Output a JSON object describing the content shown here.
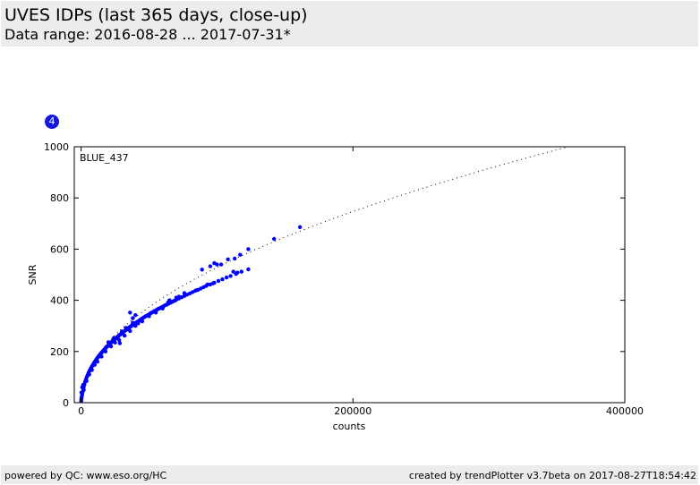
{
  "header": {
    "title": "UVES IDPs (last 365 days, close-up)",
    "subtitle": "Data range: 2016-08-28 ... 2017-07-31*"
  },
  "plot_number": "4",
  "footer": {
    "left": "powered by QC: www.eso.org/HC",
    "right": "created by trendPlotter v3.7beta on 2017-08-27T18:54:42"
  },
  "colors": {
    "points": "#0000ff",
    "fit": "#000000",
    "header_bg": "#ececec"
  },
  "chart_data": {
    "type": "scatter",
    "title": "",
    "panel_label": "BLUE_437",
    "xlabel": "counts",
    "ylabel": "SNR",
    "xlim": [
      -5000,
      400000
    ],
    "ylim": [
      0,
      1000
    ],
    "xticks": [
      0,
      200000,
      400000
    ],
    "xtick_labels": [
      "0",
      "200000",
      "400000"
    ],
    "yticks": [
      0,
      200,
      400,
      600,
      800,
      1000
    ],
    "ytick_labels": [
      "0",
      "200",
      "400",
      "600",
      "800",
      "1000"
    ],
    "grid": false,
    "fit_curve": {
      "style": "dotted",
      "form": "sqrt",
      "k": 1.67
    },
    "series": [
      {
        "points": [
          [
            50,
            5
          ],
          [
            150,
            12
          ],
          [
            300,
            18
          ],
          [
            500,
            25
          ],
          [
            800,
            32
          ],
          [
            1200,
            42
          ],
          [
            1600,
            52
          ],
          [
            2000,
            62
          ],
          [
            2500,
            72
          ],
          [
            3000,
            82
          ],
          [
            3500,
            90
          ],
          [
            4000,
            98
          ],
          [
            4500,
            104
          ],
          [
            5000,
            110
          ],
          [
            5500,
            116
          ],
          [
            6000,
            122
          ],
          [
            6500,
            127
          ],
          [
            7000,
            132
          ],
          [
            7500,
            137
          ],
          [
            8000,
            142
          ],
          [
            8500,
            146
          ],
          [
            9000,
            150
          ],
          [
            9500,
            155
          ],
          [
            10000,
            159
          ],
          [
            10500,
            163
          ],
          [
            11000,
            167
          ],
          [
            11500,
            171
          ],
          [
            12000,
            175
          ],
          [
            12500,
            178
          ],
          [
            13000,
            182
          ],
          [
            13500,
            185
          ],
          [
            14000,
            188
          ],
          [
            14500,
            192
          ],
          [
            15000,
            195
          ],
          [
            15500,
            198
          ],
          [
            16000,
            201
          ],
          [
            16500,
            204
          ],
          [
            17000,
            207
          ],
          [
            17500,
            210
          ],
          [
            18000,
            213
          ],
          [
            18500,
            216
          ],
          [
            19000,
            219
          ],
          [
            19500,
            221
          ],
          [
            20000,
            224
          ],
          [
            20500,
            227
          ],
          [
            21000,
            229
          ],
          [
            21500,
            232
          ],
          [
            22000,
            234
          ],
          [
            22500,
            237
          ],
          [
            23000,
            239
          ],
          [
            23500,
            242
          ],
          [
            24000,
            244
          ],
          [
            24500,
            247
          ],
          [
            25000,
            249
          ],
          [
            25500,
            251
          ],
          [
            26000,
            254
          ],
          [
            26500,
            256
          ],
          [
            27000,
            258
          ],
          [
            27500,
            261
          ],
          [
            28000,
            263
          ],
          [
            28500,
            265
          ],
          [
            29000,
            267
          ],
          [
            29500,
            269
          ],
          [
            30000,
            271
          ],
          [
            30500,
            273
          ],
          [
            31000,
            276
          ],
          [
            31500,
            278
          ],
          [
            32000,
            280
          ],
          [
            32500,
            282
          ],
          [
            33000,
            284
          ],
          [
            33500,
            286
          ],
          [
            34000,
            288
          ],
          [
            34500,
            290
          ],
          [
            35000,
            292
          ],
          [
            35500,
            294
          ],
          [
            36000,
            296
          ],
          [
            36500,
            298
          ],
          [
            37000,
            300
          ],
          [
            37500,
            302
          ],
          [
            38000,
            304
          ],
          [
            39000,
            308
          ],
          [
            40000,
            311
          ],
          [
            41000,
            315
          ],
          [
            42000,
            318
          ],
          [
            43000,
            322
          ],
          [
            44000,
            326
          ],
          [
            45000,
            329
          ],
          [
            46000,
            333
          ],
          [
            47000,
            336
          ],
          [
            48000,
            339
          ],
          [
            49000,
            342
          ],
          [
            50000,
            345
          ],
          [
            51000,
            349
          ],
          [
            52000,
            352
          ],
          [
            53000,
            355
          ],
          [
            54000,
            358
          ],
          [
            55000,
            361
          ],
          [
            56000,
            364
          ],
          [
            57000,
            367
          ],
          [
            58000,
            369
          ],
          [
            59000,
            372
          ],
          [
            60000,
            375
          ],
          [
            61000,
            378
          ],
          [
            62000,
            381
          ],
          [
            63000,
            383
          ],
          [
            64000,
            386
          ],
          [
            65000,
            389
          ],
          [
            66000,
            391
          ],
          [
            67000,
            394
          ],
          [
            68000,
            397
          ],
          [
            69000,
            399
          ],
          [
            70000,
            402
          ],
          [
            72000,
            407
          ],
          [
            74000,
            412
          ],
          [
            76000,
            417
          ],
          [
            78000,
            422
          ],
          [
            80000,
            427
          ],
          [
            82000,
            432
          ],
          [
            84000,
            437
          ],
          [
            86000,
            441
          ],
          [
            88000,
            446
          ],
          [
            90000,
            451
          ],
          [
            92000,
            456
          ],
          [
            95000,
            462
          ],
          [
            98000,
            469
          ],
          [
            101000,
            476
          ],
          [
            104000,
            482
          ],
          [
            107000,
            489
          ],
          [
            110000,
            495
          ],
          [
            114000,
            503
          ],
          [
            118000,
            512
          ],
          [
            123000,
            521
          ],
          [
            2000,
            50
          ],
          [
            4000,
            85
          ],
          [
            6000,
            110
          ],
          [
            8000,
            128
          ],
          [
            10000,
            148
          ],
          [
            12000,
            160
          ],
          [
            15000,
            180
          ],
          [
            18000,
            200
          ],
          [
            22000,
            220
          ],
          [
            25000,
            235
          ],
          [
            28000,
            245
          ],
          [
            28500,
            232
          ],
          [
            32000,
            262
          ],
          [
            36000,
            280
          ],
          [
            40000,
            300
          ],
          [
            45000,
            318
          ],
          [
            50000,
            338
          ],
          [
            55000,
            352
          ],
          [
            60000,
            368
          ],
          [
            42000,
            310
          ],
          [
            300,
            40
          ],
          [
            800,
            60
          ],
          [
            1500,
            70
          ],
          [
            20000,
            236
          ],
          [
            24000,
            252
          ],
          [
            30000,
            278
          ],
          [
            33000,
            292
          ],
          [
            38000,
            312
          ],
          [
            64000,
            392
          ],
          [
            70000,
            410
          ],
          [
            76000,
            428
          ],
          [
            85000,
            440
          ],
          [
            93000,
            462
          ],
          [
            97000,
            466
          ],
          [
            112000,
            512
          ],
          [
            115000,
            508
          ],
          [
            142000,
            640
          ],
          [
            161000,
            686
          ],
          [
            117000,
            578
          ],
          [
            113000,
            563
          ],
          [
            103000,
            540
          ],
          [
            98000,
            545
          ],
          [
            95000,
            533
          ],
          [
            89000,
            520
          ],
          [
            123000,
            600
          ],
          [
            40000,
            342
          ],
          [
            38000,
            330
          ],
          [
            36000,
            352
          ],
          [
            100000,
            540
          ],
          [
            108000,
            560
          ],
          [
            65000,
            400
          ],
          [
            72000,
            414
          ]
        ]
      }
    ]
  }
}
